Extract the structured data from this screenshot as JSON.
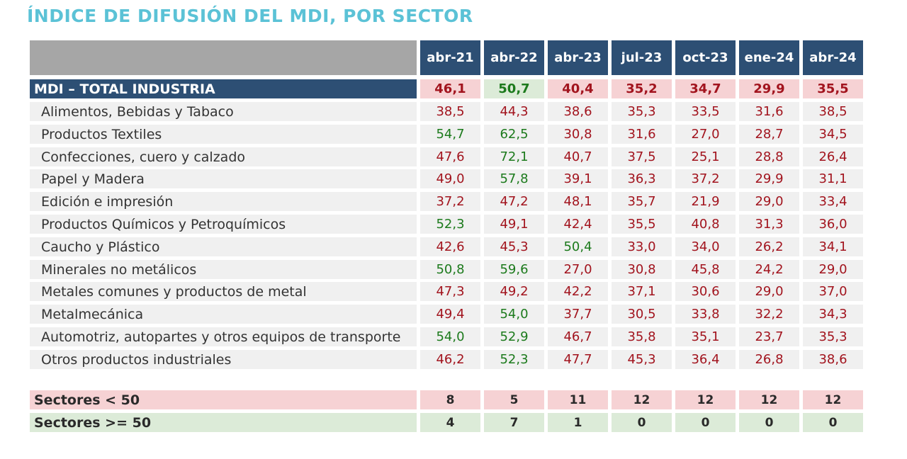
{
  "title": "ÍNDICE DE DIFUSIÓN DEL MDI, POR SECTOR",
  "columns": [
    "abr-21",
    "abr-22",
    "abr-23",
    "jul-23",
    "oct-23",
    "ene-24",
    "abr-24"
  ],
  "total": {
    "label": "MDI – TOTAL INDUSTRIA",
    "values": [
      "46,1",
      "50,7",
      "40,4",
      "35,2",
      "34,7",
      "29,9",
      "35,5"
    ]
  },
  "rows": [
    {
      "label": "Alimentos, Bebidas y Tabaco",
      "values": [
        "38,5",
        "44,3",
        "38,6",
        "35,3",
        "33,5",
        "31,6",
        "38,5"
      ]
    },
    {
      "label": "Productos Textiles",
      "values": [
        "54,7",
        "62,5",
        "30,8",
        "31,6",
        "27,0",
        "28,7",
        "34,5"
      ]
    },
    {
      "label": "Confecciones, cuero y calzado",
      "values": [
        "47,6",
        "72,1",
        "40,7",
        "37,5",
        "25,1",
        "28,8",
        "26,4"
      ]
    },
    {
      "label": "Papel y Madera",
      "values": [
        "49,0",
        "57,8",
        "39,1",
        "36,3",
        "37,2",
        "29,9",
        "31,1"
      ]
    },
    {
      "label": "Edición e impresión",
      "values": [
        "37,2",
        "47,2",
        "48,1",
        "35,7",
        "21,9",
        "29,0",
        "33,4"
      ]
    },
    {
      "label": "Productos Químicos y Petroquímicos",
      "values": [
        "52,3",
        "49,1",
        "42,4",
        "35,5",
        "40,8",
        "31,3",
        "36,0"
      ]
    },
    {
      "label": "Caucho y Plástico",
      "values": [
        "42,6",
        "45,3",
        "50,4",
        "33,0",
        "34,0",
        "26,2",
        "34,1"
      ]
    },
    {
      "label": "Minerales no metálicos",
      "values": [
        "50,8",
        "59,6",
        "27,0",
        "30,8",
        "45,8",
        "24,2",
        "29,0"
      ]
    },
    {
      "label": "Metales comunes y productos de metal",
      "values": [
        "47,3",
        "49,2",
        "42,2",
        "37,1",
        "30,6",
        "29,0",
        "37,0"
      ]
    },
    {
      "label": "Metalmecánica",
      "values": [
        "49,4",
        "54,0",
        "37,7",
        "30,5",
        "33,8",
        "32,2",
        "34,3"
      ]
    },
    {
      "label": "Automotriz, autopartes y otros equipos de transporte",
      "values": [
        "54,0",
        "52,9",
        "46,7",
        "35,8",
        "35,1",
        "23,7",
        "35,3"
      ]
    },
    {
      "label": "Otros productos industriales",
      "values": [
        "46,2",
        "52,3",
        "47,7",
        "45,3",
        "36,4",
        "26,8",
        "38,6"
      ]
    }
  ],
  "summary": [
    {
      "label": "Sectores < 50",
      "values": [
        "8",
        "5",
        "11",
        "12",
        "12",
        "12",
        "12"
      ],
      "tone": "red"
    },
    {
      "label": "Sectores >= 50",
      "values": [
        "4",
        "7",
        "1",
        "0",
        "0",
        "0",
        "0"
      ],
      "tone": "green"
    }
  ],
  "colors": {
    "title": "#5bc2d6",
    "header": "#2d4f74",
    "below_50": "#a2141e",
    "at_or_above_50": "#1c7a1c",
    "red_fill": "#f6d2d4",
    "green_fill": "#dcebd8"
  }
}
